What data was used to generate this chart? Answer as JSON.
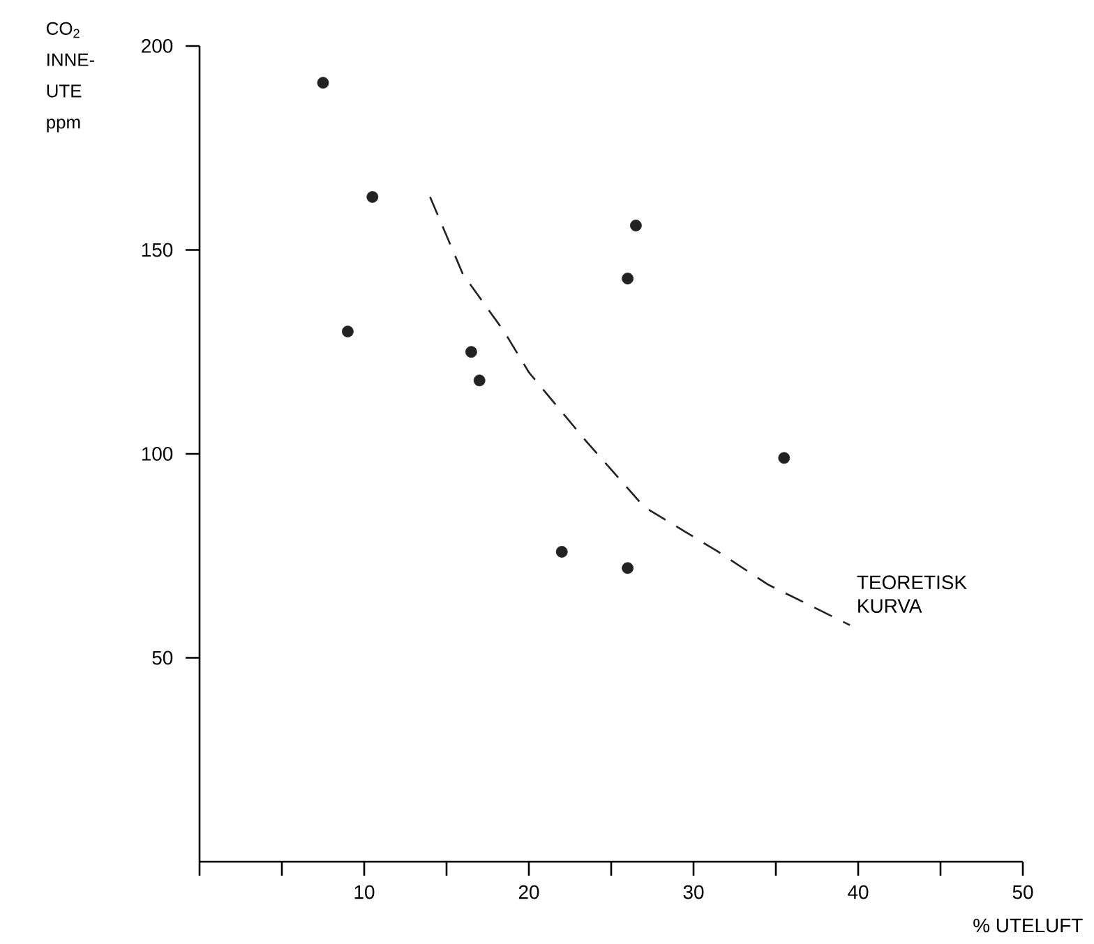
{
  "chart_data": {
    "type": "scatter",
    "xlabel": "% UTELUFT",
    "ylabel": "CO$_{2}$ INNE-UTE ppm",
    "xlim": [
      0,
      50
    ],
    "ylim": [
      0,
      200
    ],
    "xticks": [
      {
        "value": 0,
        "label": null
      },
      {
        "value": 5,
        "label": null
      },
      10,
      {
        "value": 15,
        "label": null
      },
      20,
      {
        "value": 25,
        "label": null
      },
      30,
      {
        "value": 35,
        "label": null
      },
      40,
      {
        "value": 45,
        "label": null
      },
      50
    ],
    "yticks": [
      50,
      100,
      150,
      200
    ],
    "grid": false,
    "annotations": [
      "TEORETISK KURVA"
    ],
    "series": [
      {
        "color": "#222222",
        "marker": "circle",
        "x": [
          7.5,
          10.5,
          9,
          16.5,
          17,
          26.5,
          26,
          35.5,
          22,
          26
        ],
        "values": [
          191,
          163,
          130,
          125,
          118,
          156,
          143,
          99,
          76,
          72
        ]
      },
      {
        "type": "line",
        "color": "#222222",
        "marker": "none",
        "line_style": "dashed",
        "x": [
          14,
          16,
          18.5,
          20,
          23.5,
          27,
          31.5,
          34.5,
          39.5
        ],
        "values": [
          163,
          144,
          130,
          120,
          103,
          87,
          76,
          68,
          58
        ]
      }
    ]
  }
}
